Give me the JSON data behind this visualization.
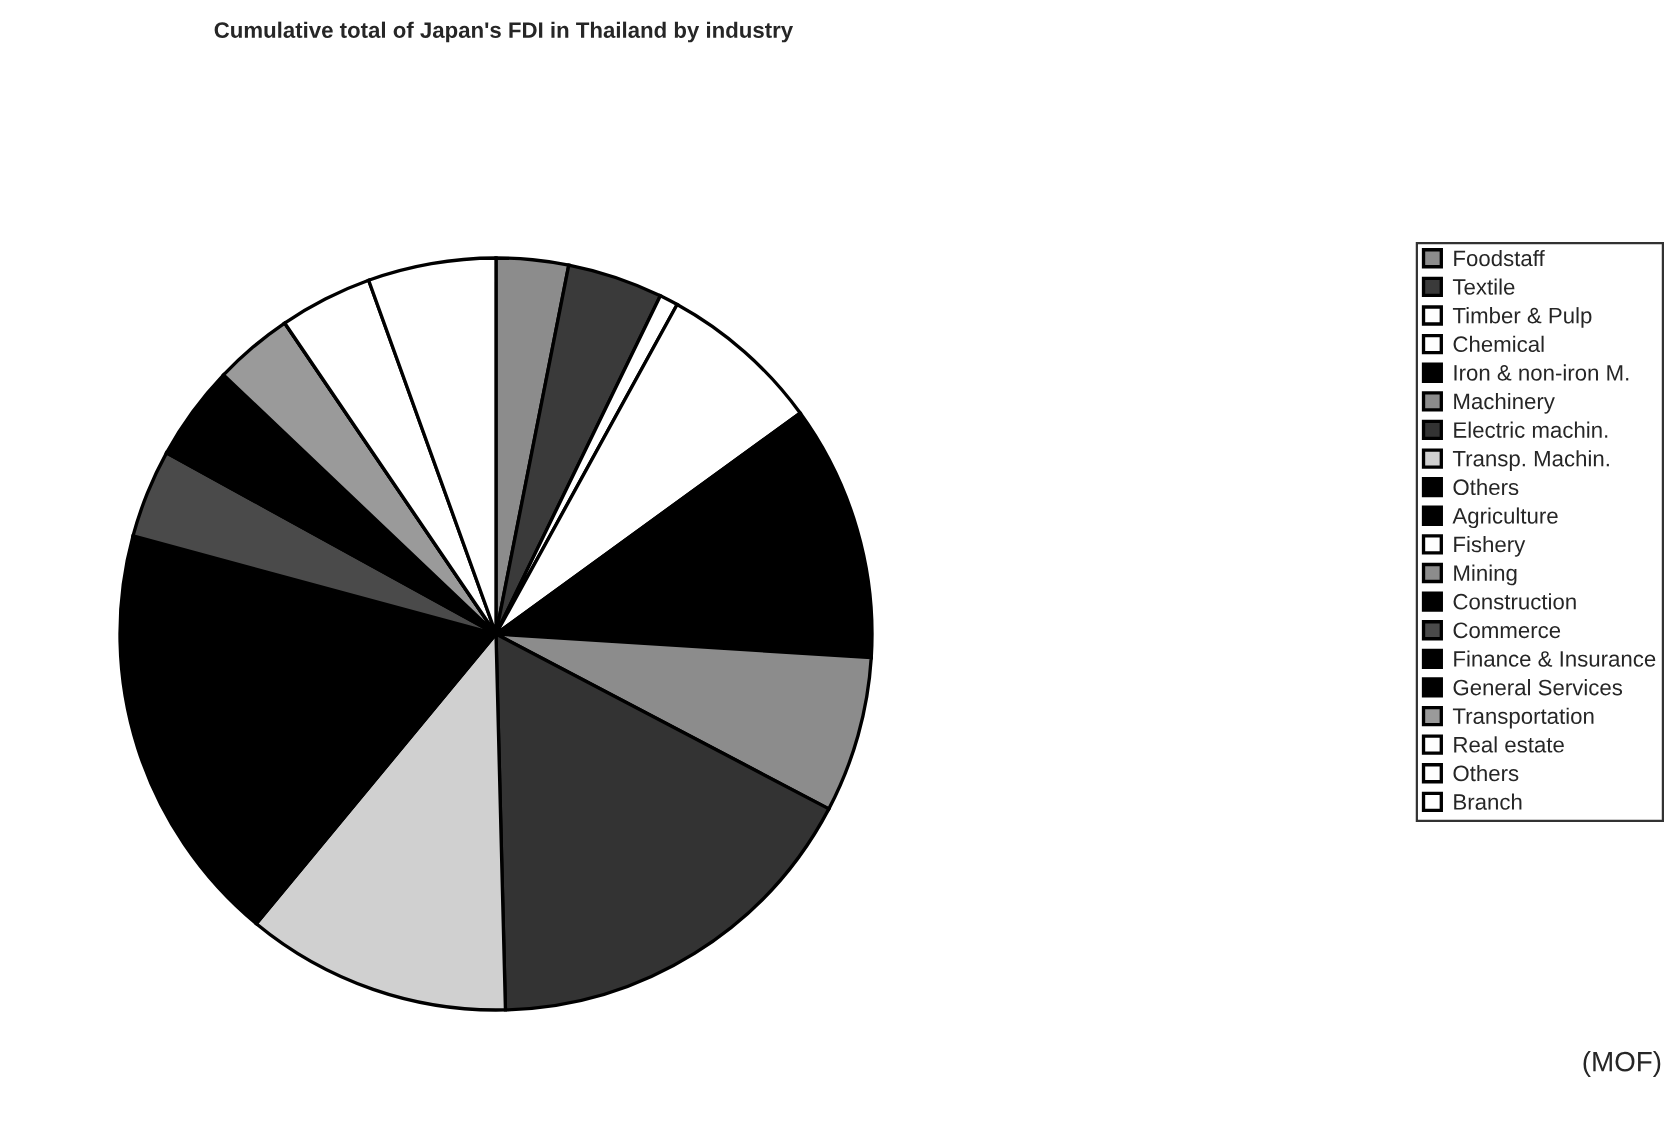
{
  "chart_data": {
    "type": "pie",
    "title": "Cumulative total of Japan's FDI in Thailand by industry",
    "categories": [
      "Foodstaff",
      "Textile",
      "Timber & Pulp",
      "Chemical",
      "Iron & non-iron M.",
      "Machinery",
      "Electric machin.",
      "Transp. Machin.",
      "Others",
      "Agriculture",
      "Fishery",
      "Mining",
      "Construction",
      "Commerce",
      "Finance & Insurance",
      "General Services",
      "Transportation",
      "Real estate",
      "Others",
      "Branch"
    ],
    "values": [
      3.1,
      4.1,
      0.8,
      7.0,
      11.0,
      6.7,
      16.9,
      11.4,
      18.2,
      0,
      0,
      0,
      0,
      3.8,
      4.1,
      0,
      3.4,
      0,
      4.0,
      5.5
    ],
    "colors": [
      "#8c8c8c",
      "#3a3a3a",
      "#ffffff",
      "#ffffff",
      "#000000",
      "#8c8c8c",
      "#333333",
      "#d0d0d0",
      "#000000",
      "#000000",
      "#ffffff",
      "#8c8c8c",
      "#000000",
      "#4a4a4a",
      "#000000",
      "#000000",
      "#9a9a9a",
      "#ffffff",
      "#ffffff",
      "#ffffff"
    ],
    "legend": "right",
    "annotations": [
      "(MOF)"
    ]
  }
}
